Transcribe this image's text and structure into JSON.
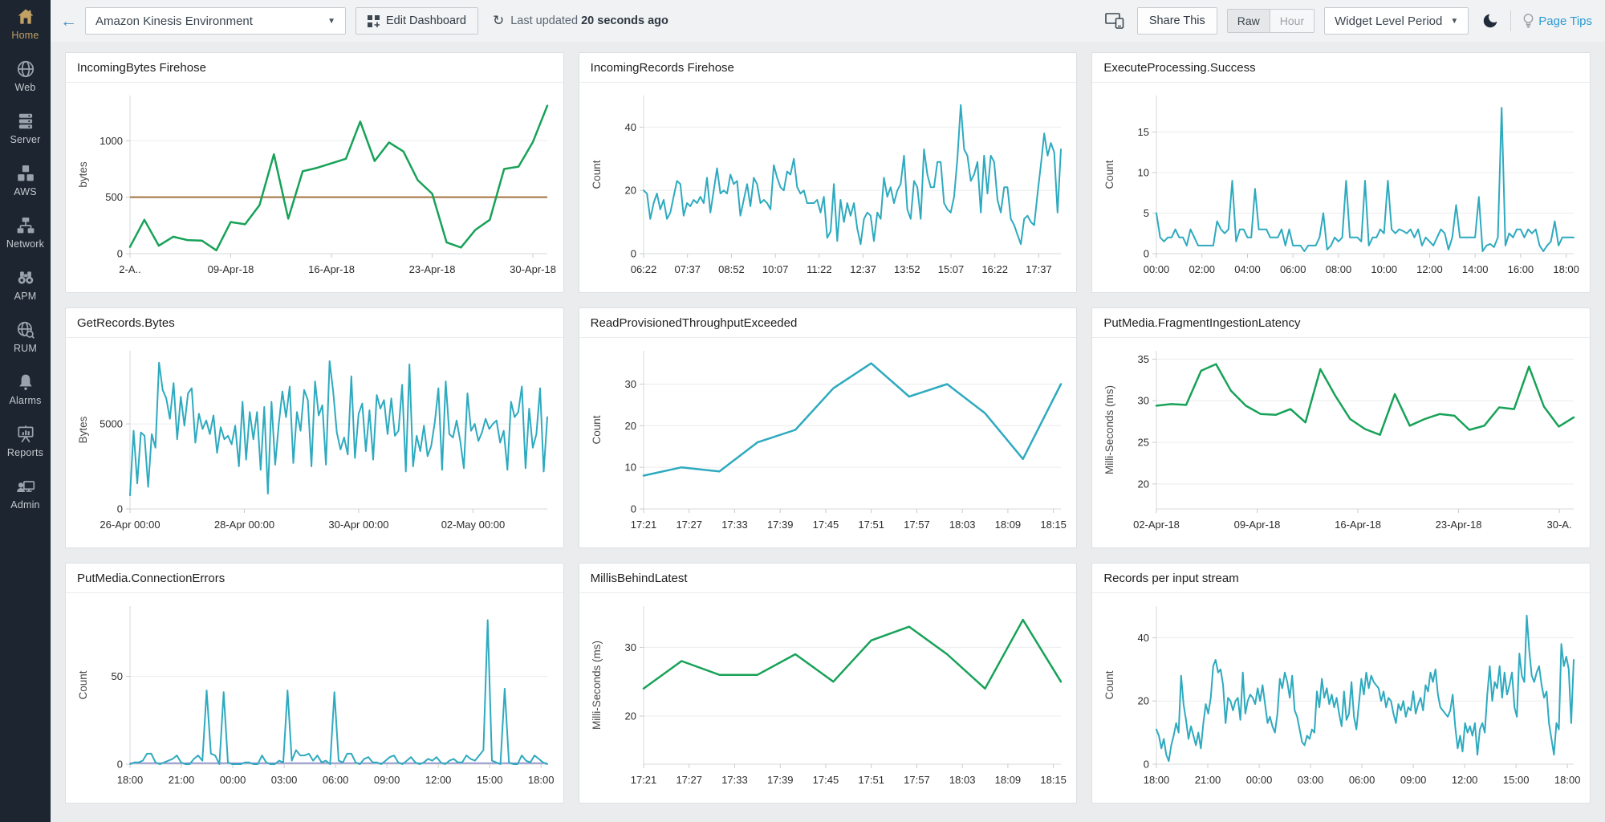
{
  "sidebar": {
    "items": [
      {
        "label": "Home",
        "active": true
      },
      {
        "label": "Web",
        "active": false
      },
      {
        "label": "Server",
        "active": false
      },
      {
        "label": "AWS",
        "active": false
      },
      {
        "label": "Network",
        "active": false
      },
      {
        "label": "APM",
        "active": false
      },
      {
        "label": "RUM",
        "active": false
      },
      {
        "label": "Alarms",
        "active": false
      },
      {
        "label": "Reports",
        "active": false
      },
      {
        "label": "Admin",
        "active": false
      }
    ]
  },
  "header": {
    "dashboard_select": {
      "value": "Amazon Kinesis Environment"
    },
    "edit_dashboard_label": "Edit Dashboard",
    "last_updated_prefix": "Last updated",
    "last_updated_value": "20 seconds ago",
    "share_button_label": "Share This",
    "granularity_toggle": {
      "options": [
        "Raw",
        "Hour"
      ],
      "selected": "Raw"
    },
    "period_select": {
      "value": "Widget Level Period"
    },
    "page_tips_label": "Page Tips"
  },
  "colors": {
    "teal": "#2eaabf",
    "green": "#17a258",
    "threshold_brown": "#a2713d",
    "flat_purple": "#8184c9",
    "sidebar_bg": "#1c2530",
    "active_gold": "#c2a164",
    "accent_blue": "#2d9ad2"
  },
  "chart_data": [
    {
      "type": "line",
      "title": "IncomingBytes Firehose",
      "ylabel": "bytes",
      "color": "green",
      "lw": 2.5,
      "ylim": [
        0,
        1400
      ],
      "yticks": [
        0,
        500,
        1000
      ],
      "threshold": 500,
      "xticks": [
        "2-A..",
        "09-Apr-18",
        "16-Apr-18",
        "23-Apr-18",
        "30-Apr-18"
      ],
      "xtick_end": 0.9655,
      "values": [
        60,
        300,
        70,
        150,
        120,
        115,
        30,
        280,
        260,
        430,
        880,
        310,
        730,
        760,
        800,
        840,
        1170,
        820,
        985,
        905,
        650,
        530,
        100,
        55,
        210,
        300,
        750,
        770,
        990,
        1310
      ]
    },
    {
      "type": "line",
      "title": "IncomingRecords Firehose",
      "ylabel": "Count",
      "color": "teal",
      "lw": 2,
      "ylim": [
        0,
        50
      ],
      "yticks": [
        0,
        20,
        40
      ],
      "xticks": [
        "06:22",
        "07:37",
        "08:52",
        "10:07",
        "11:22",
        "12:37",
        "13:52",
        "15:07",
        "16:22",
        "17:37"
      ],
      "xtick_end": 0.947,
      "values": [
        20,
        19,
        11,
        16,
        19,
        14,
        17,
        11,
        13,
        18,
        23,
        22,
        12,
        16,
        15,
        17,
        16,
        18,
        16,
        24,
        13,
        20,
        27,
        19,
        20,
        19,
        25,
        22,
        23,
        12,
        17,
        22,
        15,
        24,
        22,
        16,
        17,
        16,
        14,
        28,
        24,
        21,
        20,
        26,
        25,
        30,
        21,
        19,
        20,
        16,
        16,
        16,
        17,
        13,
        18,
        5,
        7,
        22,
        4,
        17,
        10,
        16,
        12,
        16,
        8,
        3,
        11,
        13,
        12,
        4,
        13,
        11,
        24,
        18,
        21,
        16,
        20,
        22,
        31,
        14,
        11,
        23,
        21,
        11,
        33,
        25,
        21,
        21,
        29,
        29,
        16,
        14,
        13,
        18,
        30,
        47,
        33,
        31,
        23,
        25,
        29,
        13,
        31,
        19,
        31,
        29,
        17,
        13,
        21,
        21,
        11,
        9,
        6,
        3,
        11,
        12,
        10,
        9,
        19,
        28,
        38,
        31,
        35,
        32,
        13,
        33
      ]
    },
    {
      "type": "line",
      "title": "ExecuteProcessing.Success",
      "ylabel": "Count",
      "color": "teal",
      "lw": 2,
      "ylim": [
        0,
        19.5
      ],
      "yticks": [
        0,
        5,
        10,
        15
      ],
      "xticks": [
        "00:00",
        "02:00",
        "04:00",
        "06:00",
        "08:00",
        "10:00",
        "12:00",
        "14:00",
        "16:00",
        "18:00"
      ],
      "xtick_end": 0.982,
      "values": [
        5,
        2,
        1.5,
        2,
        2,
        3,
        2,
        2,
        1,
        3,
        2,
        1,
        1,
        1,
        1,
        1,
        4,
        3,
        2.5,
        3,
        9,
        1.5,
        3,
        3,
        2,
        2,
        8,
        3,
        3,
        3,
        2,
        2,
        2,
        3,
        1,
        3,
        1,
        1,
        1,
        0.3,
        1,
        1,
        1,
        2,
        5,
        0.5,
        1,
        2,
        1.5,
        2,
        9,
        2,
        2,
        2,
        1.5,
        9,
        1,
        2,
        2,
        3,
        2.5,
        9,
        3,
        2.5,
        3,
        2.8,
        2.5,
        3,
        2,
        3,
        1,
        2,
        1.5,
        1,
        2,
        3,
        2.5,
        0.5,
        2,
        6,
        2,
        2,
        2,
        2,
        2,
        7,
        0.3,
        1,
        1.2,
        0.8,
        2,
        18,
        1,
        2.5,
        2,
        3,
        3,
        2,
        3,
        2.5,
        3,
        1,
        0.3,
        1,
        1.5,
        4,
        1,
        2,
        2,
        2,
        2
      ]
    },
    {
      "type": "line",
      "title": "GetRecords.Bytes",
      "ylabel": "Bytes",
      "color": "teal",
      "lw": 2,
      "ylim": [
        0,
        9300
      ],
      "yticks": [
        0,
        5000
      ],
      "xticks": [
        "26-Apr 00:00",
        "28-Apr 00:00",
        "30-Apr 00:00",
        "02-May 00:00"
      ],
      "xtick_end": 0.822,
      "values": [
        800,
        4600,
        1500,
        4500,
        4300,
        1300,
        4400,
        3600,
        8600,
        7000,
        6500,
        5300,
        7400,
        4100,
        6600,
        4900,
        6800,
        7100,
        3900,
        5600,
        4700,
        5200,
        4400,
        5500,
        3300,
        4800,
        4100,
        4300,
        3800,
        4900,
        2500,
        6300,
        2900,
        5700,
        4100,
        5700,
        2300,
        6000,
        900,
        6300,
        2600,
        5000,
        6900,
        5400,
        7200,
        2700,
        5700,
        4600,
        7000,
        6400,
        2500,
        7500,
        5500,
        6100,
        2600,
        8700,
        6900,
        4500,
        3500,
        4200,
        3200,
        7800,
        3000,
        5600,
        6200,
        3400,
        5800,
        2900,
        6700,
        5900,
        6400,
        4400,
        6500,
        4300,
        4600,
        7300,
        2200,
        8500,
        2500,
        4300,
        3400,
        4900,
        3100,
        3700,
        5100,
        7100,
        2300,
        7500,
        4400,
        4200,
        5200,
        4000,
        2400,
        6800,
        4600,
        5000,
        4000,
        4500,
        5300,
        4700,
        5000,
        5200,
        3900,
        4600,
        2300,
        6300,
        5400,
        5700,
        7200,
        2400,
        5900,
        3600,
        4400,
        7100,
        2200,
        5400
      ]
    },
    {
      "type": "line",
      "title": "ReadProvisionedThroughputExceeded",
      "ylabel": "Count",
      "color": "teal",
      "lw": 2.5,
      "ylim": [
        0,
        38
      ],
      "yticks": [
        0,
        10,
        20,
        30
      ],
      "xticks": [
        "17:21",
        "17:27",
        "17:33",
        "17:39",
        "17:45",
        "17:51",
        "17:57",
        "18:03",
        "18:09",
        "18:15"
      ],
      "xtick_end": 0.982,
      "values": [
        8,
        10,
        9,
        16,
        19,
        29,
        35,
        27,
        30,
        23,
        12,
        30
      ]
    },
    {
      "type": "line",
      "title": "PutMedia.FragmentIngestionLatency",
      "ylabel": "Milli-Seconds (ms)",
      "color": "green",
      "lw": 2.5,
      "ylim": [
        17,
        36
      ],
      "yticks": [
        20,
        25,
        30,
        35
      ],
      "xticks": [
        "02-Apr-18",
        "09-Apr-18",
        "16-Apr-18",
        "23-Apr-18",
        "30-A."
      ],
      "xtick_end": 0.9655,
      "values": [
        29.4,
        29.6,
        29.5,
        33.6,
        34.4,
        31.2,
        29.4,
        28.4,
        28.3,
        29.0,
        27.4,
        33.8,
        30.6,
        27.8,
        26.6,
        25.9,
        30.8,
        27.0,
        27.8,
        28.4,
        28.2,
        26.5,
        27.0,
        29.2,
        29.0,
        34.1,
        29.3,
        26.9,
        28.0
      ]
    },
    {
      "type": "line",
      "title": "PutMedia.ConnectionErrors",
      "ylabel": "Count",
      "color": "teal",
      "lw": 2,
      "flat": 0.6,
      "ylim": [
        0,
        90
      ],
      "yticks": [
        0,
        50
      ],
      "xticks": [
        "18:00",
        "21:00",
        "00:00",
        "03:00",
        "06:00",
        "09:00",
        "12:00",
        "15:00",
        "18:00"
      ],
      "xtick_end": 0.985,
      "values": [
        0,
        1,
        1,
        2,
        6,
        6,
        1,
        0,
        1,
        2,
        3,
        5,
        1,
        0,
        0,
        3,
        5,
        2,
        42,
        6,
        5,
        0,
        41,
        1,
        0,
        0,
        0,
        1,
        1,
        0,
        0,
        5,
        1,
        0,
        0,
        2,
        1,
        42,
        2,
        8,
        5,
        5,
        6,
        2,
        5,
        1,
        2,
        0,
        41,
        2,
        1,
        6,
        6,
        1,
        0,
        3,
        4,
        1,
        1,
        0,
        2,
        4,
        5,
        1,
        0,
        2,
        4,
        1,
        0,
        1,
        3,
        2,
        4,
        1,
        0,
        2,
        3,
        1,
        1,
        5,
        3,
        2,
        5,
        8,
        82,
        2,
        1,
        0,
        43,
        1,
        0,
        0,
        5,
        2,
        1,
        5,
        3,
        1,
        0
      ]
    },
    {
      "type": "line",
      "title": "MillisBehindLatest",
      "ylabel": "Milli-Seconds (ms)",
      "color": "green",
      "lw": 2.5,
      "ylim": [
        13,
        36
      ],
      "yticks": [
        20,
        30
      ],
      "xticks": [
        "17:21",
        "17:27",
        "17:33",
        "17:39",
        "17:45",
        "17:51",
        "17:57",
        "18:03",
        "18:09",
        "18:15"
      ],
      "xtick_end": 0.982,
      "values": [
        24,
        28,
        26,
        26,
        29,
        25,
        31,
        33,
        29,
        24,
        34,
        25
      ]
    },
    {
      "type": "line",
      "title": "Records per input stream",
      "ylabel": "Count",
      "color": "teal",
      "lw": 2,
      "ylim": [
        0,
        50
      ],
      "yticks": [
        0,
        20,
        40
      ],
      "xticks": [
        "18:00",
        "21:00",
        "00:00",
        "03:00",
        "06:00",
        "09:00",
        "12:00",
        "15:00",
        "18:00"
      ],
      "xtick_end": 0.985,
      "values": [
        11,
        9,
        5,
        8,
        3,
        1,
        6,
        9,
        13,
        10,
        28,
        19,
        14,
        8,
        12,
        9,
        6,
        10,
        5,
        13,
        19,
        16,
        21,
        31,
        33,
        29,
        30,
        25,
        13,
        21,
        20,
        17,
        20,
        21,
        14,
        29,
        16,
        20,
        22,
        21,
        19,
        24,
        20,
        25,
        19,
        13,
        15,
        12,
        10,
        16,
        27,
        24,
        29,
        26,
        21,
        28,
        17,
        15,
        11,
        7,
        6,
        9,
        8,
        11,
        10,
        23,
        18,
        27,
        21,
        24,
        19,
        22,
        18,
        21,
        16,
        12,
        23,
        14,
        16,
        26,
        15,
        11,
        19,
        27,
        22,
        29,
        24,
        28,
        26,
        25,
        24,
        20,
        23,
        18,
        21,
        20,
        16,
        13,
        19,
        17,
        20,
        15,
        18,
        17,
        23,
        16,
        19,
        21,
        17,
        25,
        23,
        29,
        26,
        30,
        22,
        18,
        17,
        16,
        15,
        17,
        22,
        12,
        5,
        9,
        4,
        13,
        10,
        12,
        9,
        13,
        3,
        11,
        13,
        10,
        22,
        31,
        20,
        26,
        24,
        31,
        21,
        29,
        22,
        25,
        29,
        18,
        15,
        35,
        28,
        26,
        47,
        36,
        28,
        26,
        29,
        31,
        25,
        21,
        23,
        13,
        8,
        3,
        13,
        11,
        38,
        31,
        34,
        30,
        13,
        33
      ]
    }
  ]
}
